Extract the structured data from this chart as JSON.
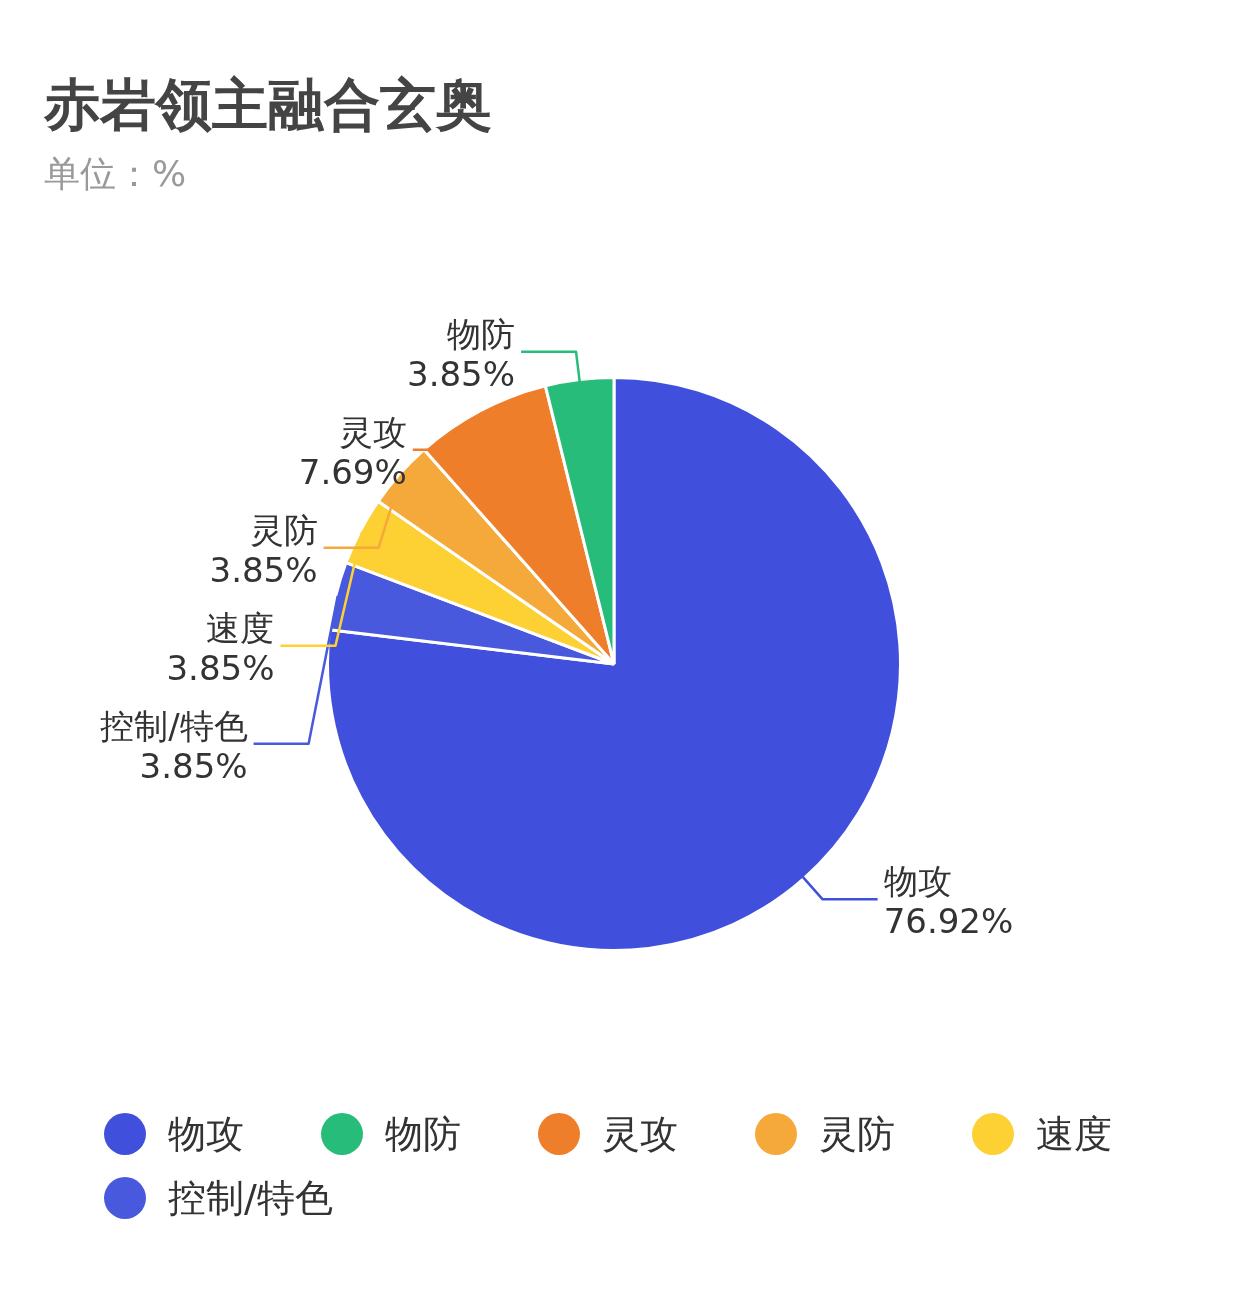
{
  "chart_data": {
    "type": "pie",
    "title": "赤岩领主融合玄奥",
    "subtitle": "单位：%",
    "categories": [
      "物攻",
      "物防",
      "灵攻",
      "灵防",
      "速度",
      "控制/特色"
    ],
    "values": [
      76.92,
      3.85,
      7.69,
      3.85,
      3.85,
      3.85
    ],
    "colors": [
      "#4150dc",
      "#27bc7a",
      "#ef7e2a",
      "#f4a93a",
      "#fdd033",
      "#4859dd"
    ],
    "value_labels": [
      "76.92%",
      "3.85%",
      "7.69%",
      "3.85%",
      "3.85%",
      "3.85%"
    ],
    "legend": "bottom"
  }
}
